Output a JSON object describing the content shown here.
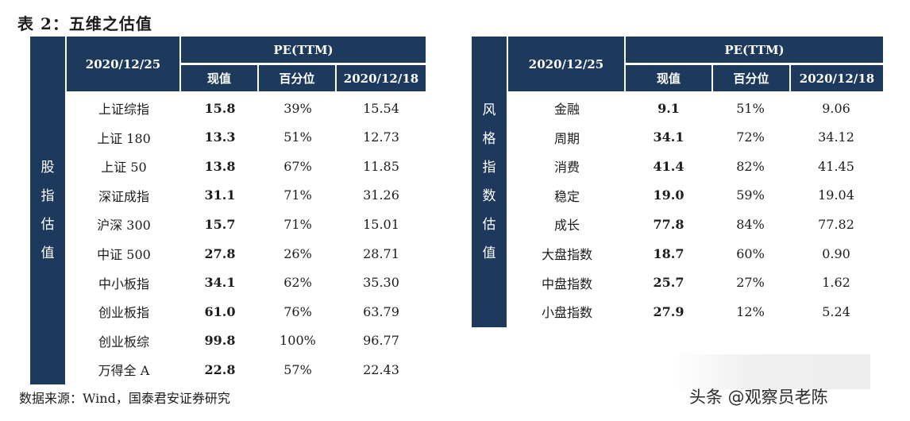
{
  "title": "表 2：五维之估值",
  "source": "数据来源：Wind，国泰君安证券研究",
  "watermark": "头条 @观察员老陈",
  "left_table": {
    "sidebar_label": [
      "股",
      "指",
      "估",
      "值"
    ],
    "date_header": "2020/12/25",
    "pe_header": "PE(TTM)",
    "sub_headers": [
      "现值",
      "百分位",
      "2020/12/18"
    ],
    "rows": [
      {
        "name": "上证综指",
        "current": "15.8",
        "pct": "39%",
        "prev": "15.54"
      },
      {
        "name": "上证 180",
        "current": "13.3",
        "pct": "51%",
        "prev": "12.73"
      },
      {
        "name": "上证 50",
        "current": "13.8",
        "pct": "67%",
        "prev": "11.85"
      },
      {
        "name": "深证成指",
        "current": "31.1",
        "pct": "71%",
        "prev": "31.26"
      },
      {
        "name": "沪深 300",
        "current": "15.7",
        "pct": "71%",
        "prev": "15.01"
      },
      {
        "name": "中证 500",
        "current": "27.8",
        "pct": "26%",
        "prev": "28.71"
      },
      {
        "name": "中小板指",
        "current": "34.1",
        "pct": "62%",
        "prev": "35.30"
      },
      {
        "name": "创业板指",
        "current": "61.0",
        "pct": "76%",
        "prev": "63.79"
      },
      {
        "name": "创业板综",
        "current": "99.8",
        "pct": "100%",
        "prev": "96.77"
      },
      {
        "name": "万得全 A",
        "current": "22.8",
        "pct": "57%",
        "prev": "22.43"
      }
    ]
  },
  "right_table": {
    "sidebar_label": [
      "风",
      "格",
      "指",
      "数",
      "估",
      "值"
    ],
    "date_header": "2020/12/25",
    "pe_header": "PE(TTM)",
    "sub_headers": [
      "现值",
      "百分位",
      "2020/12/18"
    ],
    "rows": [
      {
        "name": "金融",
        "current": "9.1",
        "pct": "51%",
        "prev": "9.06"
      },
      {
        "name": "周期",
        "current": "34.1",
        "pct": "72%",
        "prev": "34.12"
      },
      {
        "name": "消费",
        "current": "41.4",
        "pct": "82%",
        "prev": "41.45"
      },
      {
        "name": "稳定",
        "current": "19.0",
        "pct": "59%",
        "prev": "19.04"
      },
      {
        "name": "成长",
        "current": "77.8",
        "pct": "84%",
        "prev": "77.82"
      },
      {
        "name": "大盘指数",
        "current": "18.7",
        "pct": "60%",
        "prev": "0.90"
      },
      {
        "name": "中盘指数",
        "current": "25.7",
        "pct": "27%",
        "prev": "1.62"
      },
      {
        "name": "小盘指数",
        "current": "27.9",
        "pct": "12%",
        "prev": "5.24"
      }
    ]
  }
}
